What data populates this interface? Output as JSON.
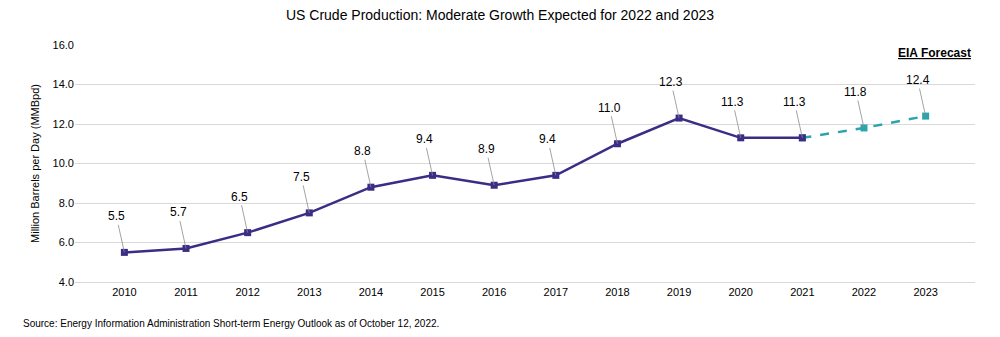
{
  "chart_data": {
    "type": "line",
    "title": "US Crude Production: Moderate Growth Expected for 2022 and 2023",
    "y_label": "Million Barrels per Day (MMBpd)",
    "annotations": [
      "EIA Forecast",
      "Source: Energy Information Administration Short-term Energy Outlook as of October 12, 2022."
    ],
    "categories": [
      "2010",
      "2011",
      "2012",
      "2013",
      "2014",
      "2015",
      "2016",
      "2017",
      "2018",
      "2019",
      "2020",
      "2021",
      "2022",
      "2023"
    ],
    "series": [
      {
        "color": "#3b2c85",
        "line_style": "solid",
        "marker": "square",
        "values": [
          5.5,
          5.7,
          6.5,
          7.5,
          8.8,
          9.4,
          8.9,
          9.4,
          11.0,
          12.3,
          11.3,
          11.3,
          null,
          null
        ],
        "value_labels": [
          "5.5",
          "5.7",
          "6.5",
          "7.5",
          "8.8",
          "9.4",
          "8.9",
          "9.4",
          "11.0",
          "12.3",
          "11.3",
          "11.3",
          null,
          null
        ]
      },
      {
        "color": "#2ba4ad",
        "line_style": "dash",
        "marker": "square",
        "values": [
          null,
          null,
          null,
          null,
          null,
          null,
          null,
          null,
          null,
          null,
          null,
          11.3,
          11.8,
          12.4
        ],
        "value_labels": [
          null,
          null,
          null,
          null,
          null,
          null,
          null,
          null,
          null,
          null,
          null,
          null,
          "11.8",
          "12.4"
        ]
      }
    ],
    "ylim": [
      4.0,
      16.0
    ],
    "yticks": [
      {
        "value": 4,
        "label": "4.0"
      },
      {
        "value": 6,
        "label": "6.0"
      },
      {
        "value": 8,
        "label": "8.0"
      },
      {
        "value": 10,
        "label": "10.0"
      },
      {
        "value": 12,
        "label": "12.0"
      },
      {
        "value": 14,
        "label": "14.0"
      },
      {
        "value": 16,
        "label": "16.0"
      }
    ],
    "grid": true,
    "data_labels": true
  }
}
